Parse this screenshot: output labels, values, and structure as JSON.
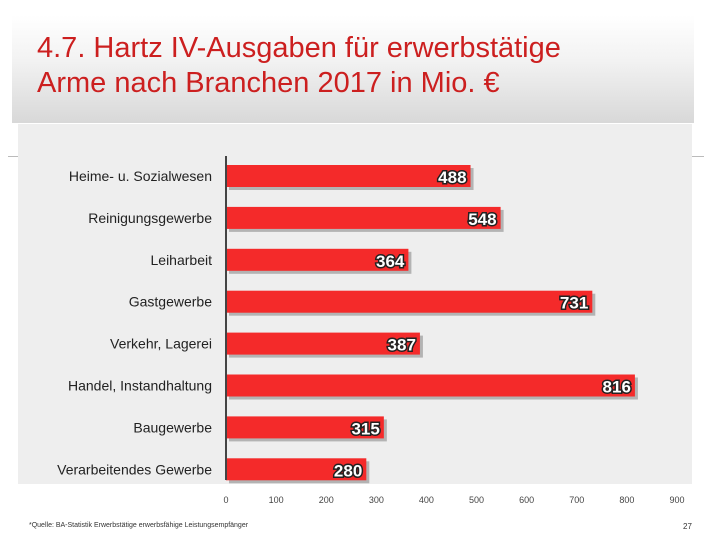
{
  "slide": {
    "title": "4.7. Hartz IV-Ausgaben für erwerbstätige\n     Arme nach Branchen 2017 in Mio. €",
    "source": "*Quelle: BA-Statistik Erwerbstätige erwerbsfähige Leistungsempfänger",
    "page_number": "27"
  },
  "colors": {
    "bar": "#f42a2a",
    "bar_shadow": "#b3b3b3",
    "title": "#cc1f1f",
    "value_label": "#ffffff",
    "value_label_outline": "#222222"
  },
  "chart_data": {
    "type": "bar",
    "orientation": "horizontal",
    "title": "",
    "xlabel": "",
    "ylabel": "",
    "categories": [
      "Heime- u. Sozialwesen",
      "Reinigungsgewerbe",
      "Leiharbeit",
      "Gastgewerbe",
      "Verkehr, Lagerei",
      "Handel, Instandhaltung",
      "Baugewerbe",
      "Verarbeitendes Gewerbe"
    ],
    "values": [
      488,
      548,
      364,
      731,
      387,
      816,
      315,
      280
    ],
    "value_labels": [
      "488",
      "548",
      "364",
      "731",
      "387",
      "816",
      "315",
      "280"
    ],
    "xlim": [
      0,
      900
    ],
    "x_ticks": [
      0,
      100,
      200,
      300,
      400,
      500,
      600,
      700,
      800,
      900
    ],
    "x_tick_labels": [
      "0",
      "100",
      "200",
      "300",
      "400",
      "500",
      "600",
      "700",
      "800",
      "900"
    ],
    "grid": false,
    "legend": "none"
  }
}
